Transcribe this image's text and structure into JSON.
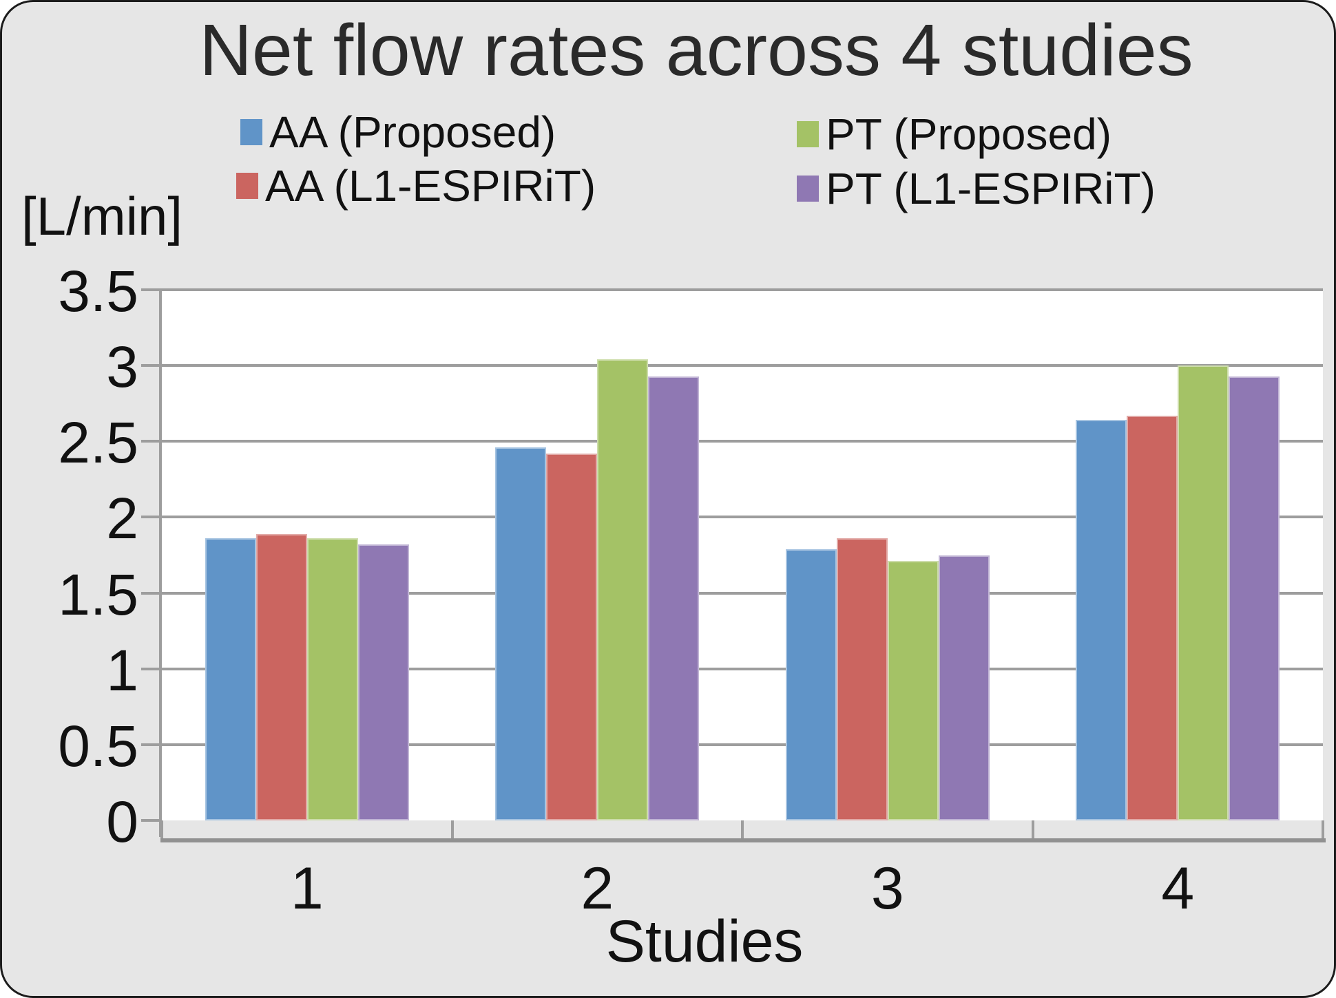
{
  "title": "Net flow rates across 4 studies",
  "colors": {
    "background": "#e6e6e6",
    "plot_background": "#ffffff",
    "gridline": "#9d9d9d",
    "axis_line": "#9d9d9d",
    "floor_line": "#919191",
    "frame_border": "#1c1c1c",
    "text": "#111111",
    "series_blue": "#6094c8",
    "series_red": "#cb6560",
    "series_green": "#a4c266",
    "series_purple": "#8f78b3"
  },
  "legend": {
    "items": [
      {
        "label": "AA (Proposed)",
        "color": "#6094c8"
      },
      {
        "label": "AA (L1-ESPIRiT)",
        "color": "#cb6560"
      },
      {
        "label": "PT (Proposed)",
        "color": "#a4c266"
      },
      {
        "label": "PT (L1-ESPIRiT)",
        "color": "#8f78b3"
      }
    ]
  },
  "y_axis": {
    "label": "[L/min]",
    "min": 0,
    "max": 3.5,
    "step": 0.5,
    "tick_labels": [
      "0",
      "0.5",
      "1",
      "1.5",
      "2",
      "2.5",
      "3",
      "3.5"
    ]
  },
  "x_axis": {
    "label": "Studies",
    "categories": [
      "1",
      "2",
      "3",
      "4"
    ]
  },
  "chart_data": {
    "type": "bar",
    "title": "Net flow rates across 4 studies",
    "categories": [
      "1",
      "2",
      "3",
      "4"
    ],
    "series": [
      {
        "name": "AA (Proposed)",
        "color": "#6094c8",
        "values": [
          1.86,
          2.46,
          1.79,
          2.64
        ]
      },
      {
        "name": "AA (L1-ESPIRiT)",
        "color": "#cb6560",
        "values": [
          1.89,
          2.42,
          1.86,
          2.67
        ]
      },
      {
        "name": "PT (Proposed)",
        "color": "#a4c266",
        "values": [
          1.86,
          3.04,
          1.71,
          3.0
        ]
      },
      {
        "name": "PT (L1-ESPIRiT)",
        "color": "#8f78b3",
        "values": [
          1.82,
          2.93,
          1.75,
          2.93
        ]
      }
    ],
    "xlabel": "Studies",
    "ylabel": "[L/min]",
    "ylim": [
      0,
      3.5
    ],
    "ytick_step": 0.5,
    "grid": true,
    "legend_position": "top",
    "bar_gap_within_group": 0
  }
}
